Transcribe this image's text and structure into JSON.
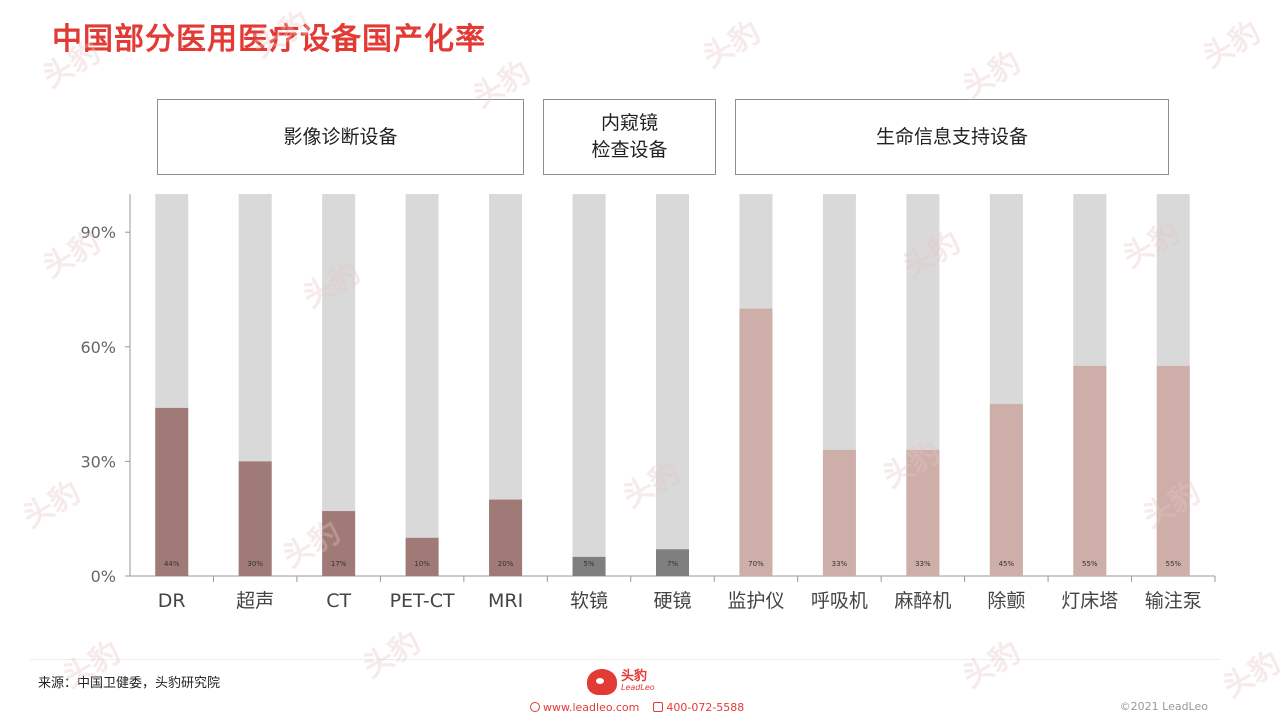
{
  "title": "中国部分医用医疗设备国产化率",
  "groups": [
    {
      "label_lines": [
        "影像诊断设备"
      ]
    },
    {
      "label_lines": [
        "内窥镜",
        "检查设备"
      ]
    },
    {
      "label_lines": [
        "生命信息支持设备"
      ]
    }
  ],
  "chart_data": {
    "type": "bar",
    "stacked_to": 100,
    "categories": [
      "DR",
      "超声",
      "CT",
      "PET-CT",
      "MRI",
      "软镜",
      "硬镜",
      "监护仪",
      "呼吸机",
      "麻醉机",
      "除颤",
      "灯床塔",
      "输注泵"
    ],
    "values": [
      44,
      30,
      17,
      10,
      20,
      5,
      7,
      70,
      33,
      33,
      45,
      55,
      55
    ],
    "value_labels": [
      "44%",
      "30%",
      "17%",
      "10%",
      "20%",
      "5%",
      "7%",
      "70%",
      "33%",
      "33%",
      "45%",
      "55%",
      "55%"
    ],
    "bar_groups": [
      0,
      0,
      0,
      0,
      0,
      1,
      1,
      2,
      2,
      2,
      2,
      2,
      2
    ],
    "yticks": [
      "0%",
      "30%",
      "60%",
      "90%"
    ],
    "ytick_values": [
      0,
      30,
      60,
      90
    ],
    "ylim": [
      0,
      100
    ],
    "grid": false,
    "colors": {
      "imaging": "#a07a77",
      "endoscope": "#7f7f7f",
      "life_support": "#cdaea9",
      "background_bar": "#d9d9d9",
      "axis": "#999999"
    }
  },
  "footer": {
    "source": "来源：中国卫健委，头豹研究院",
    "logo_cn": "头豹",
    "logo_en": "LeadLeo",
    "website": "www.leadleo.com",
    "phone": "400-072-5588",
    "copyright": "©2021 LeadLeo"
  },
  "watermark_text": "头豹"
}
